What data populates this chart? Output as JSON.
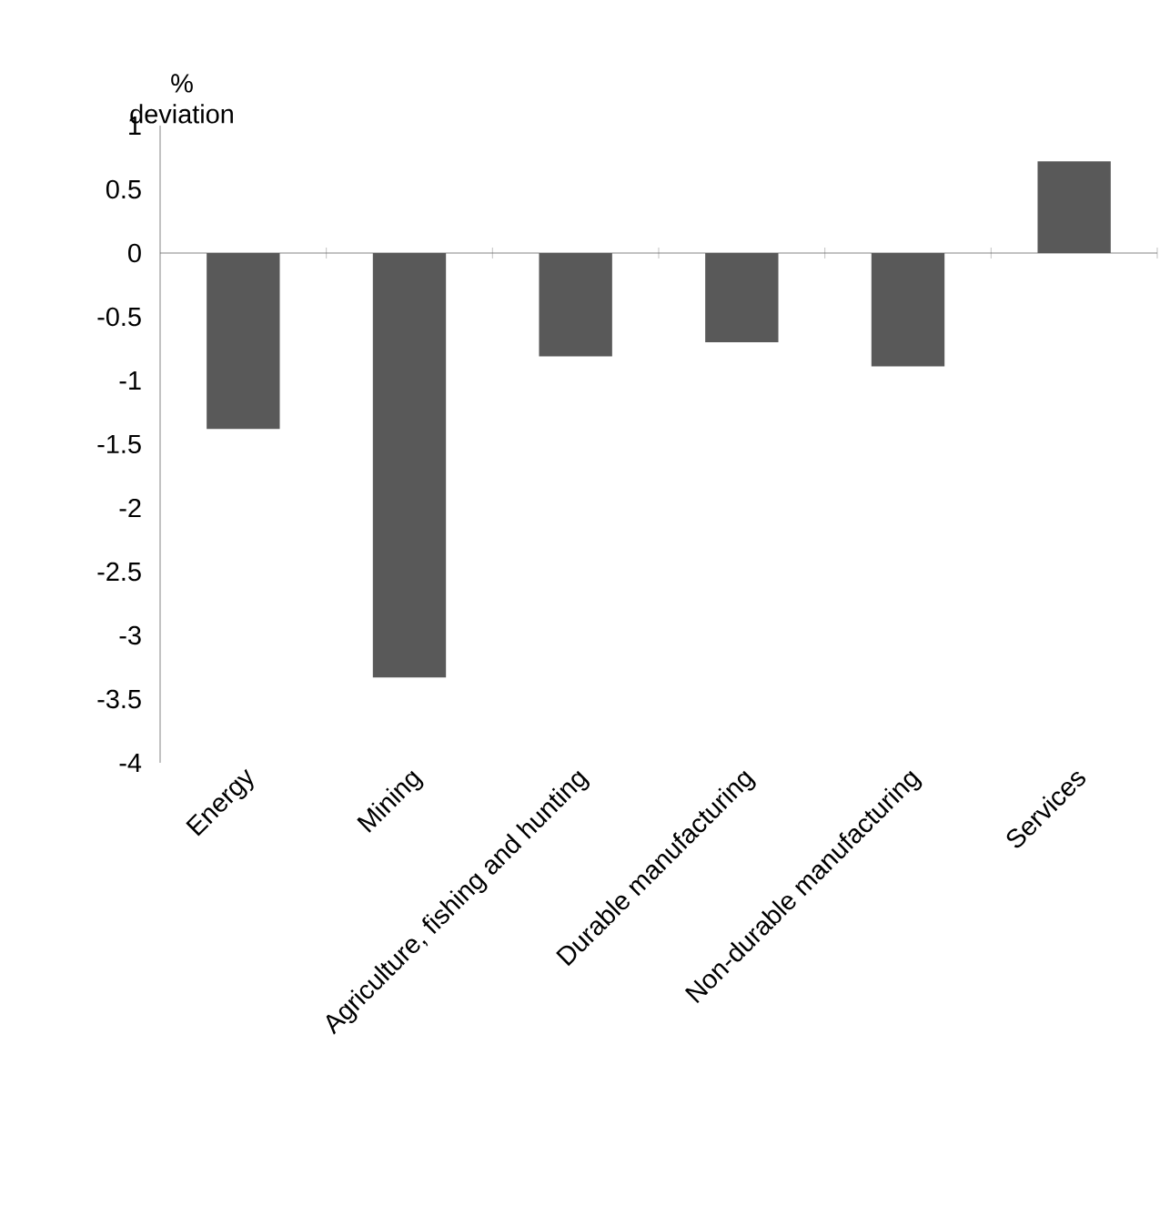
{
  "chart_data": {
    "type": "bar",
    "ylabel": "% deviation",
    "categories": [
      "Energy",
      "Mining",
      "Agriculture, fishing and hunting",
      "Durable manufacturing",
      "Non-durable manufacturing",
      "Services"
    ],
    "values": [
      -1.38,
      -3.33,
      -0.81,
      -0.7,
      -0.89,
      0.72
    ],
    "color": "#595959",
    "ylim": [
      -4,
      1
    ],
    "yticks": [
      -4,
      -3.5,
      -3,
      -2.5,
      -2,
      -1.5,
      -1,
      -0.5,
      0,
      0.5,
      1
    ]
  }
}
